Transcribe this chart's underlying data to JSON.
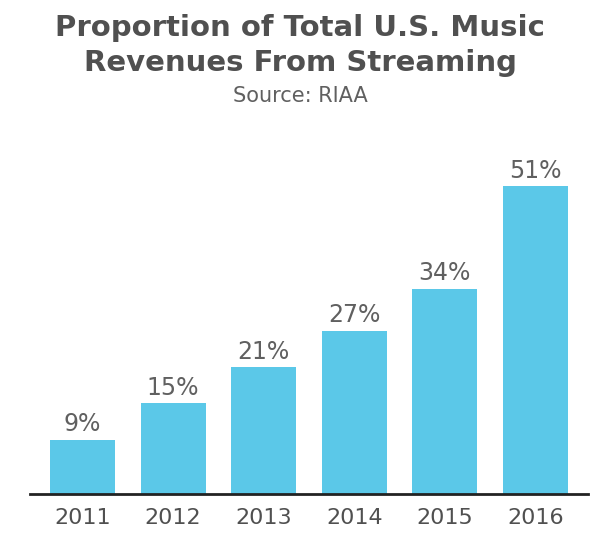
{
  "title": "Proportion of Total U.S. Music\nRevenues From Streaming",
  "subtitle": "Source: RIAA",
  "categories": [
    "2011",
    "2012",
    "2013",
    "2014",
    "2015",
    "2016"
  ],
  "values": [
    9,
    15,
    21,
    27,
    34,
    51
  ],
  "labels": [
    "9%",
    "15%",
    "21%",
    "27%",
    "34%",
    "51%"
  ],
  "bar_color": "#5BC8E8",
  "title_color": "#505050",
  "subtitle_color": "#606060",
  "label_color": "#606060",
  "xtick_color": "#505050",
  "background_color": "#ffffff",
  "ylim": [
    0,
    62
  ],
  "title_fontsize": 21,
  "subtitle_fontsize": 15,
  "label_fontsize": 17,
  "xtick_fontsize": 16,
  "bar_width": 0.72
}
